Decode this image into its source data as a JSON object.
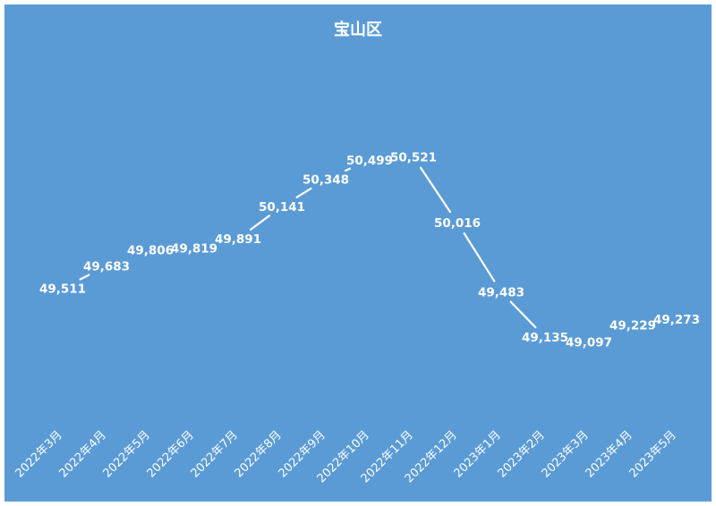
{
  "chart_data": {
    "type": "line",
    "title": "宝山区",
    "categories": [
      "2022年3月",
      "2022年4月",
      "2022年5月",
      "2022年6月",
      "2022年7月",
      "2022年8月",
      "2022年9月",
      "2022年10月",
      "2022年11月",
      "2022年12月",
      "2023年1月",
      "2023年2月",
      "2023年3月",
      "2023年4月",
      "2023年5月"
    ],
    "values": [
      49511,
      49683,
      49806,
      49819,
      49891,
      50141,
      50348,
      50499,
      50521,
      50016,
      49483,
      49135,
      49097,
      49229,
      49273
    ],
    "value_labels": [
      "49,511",
      "49,683",
      "49,806",
      "49,819",
      "49,891",
      "50,141",
      "50,348",
      "50,499",
      "50,521",
      "50,016",
      "49,483",
      "49,135",
      "49,097",
      "49,229",
      "49,273"
    ],
    "ylim": [
      48600,
      50800
    ],
    "grid": false,
    "drop_lines": true,
    "colors": {
      "background": "#5b9bd5",
      "line": "#ffffff",
      "text": "#ffffff"
    }
  }
}
